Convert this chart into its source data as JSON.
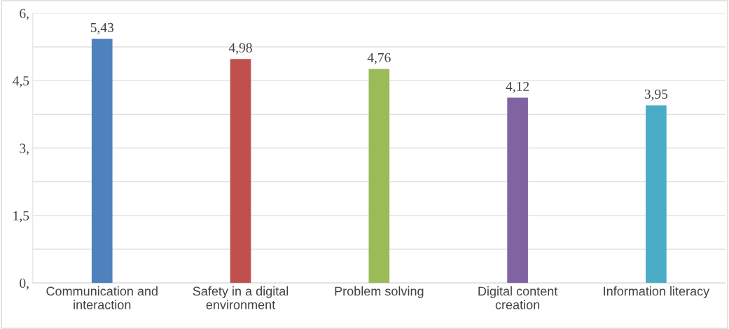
{
  "chart_data": {
    "type": "bar",
    "categories": [
      "Communication and\ninteraction",
      "Safety in a digital\nenvironment",
      "Problem solving",
      "Digital content\ncreation",
      "Information literacy"
    ],
    "values": [
      5.43,
      4.98,
      4.76,
      4.12,
      3.95
    ],
    "colors": [
      "#4f81bd",
      "#c0504d",
      "#9bbb59",
      "#8064a2",
      "#4bacc6"
    ],
    "value_labels": [
      "5,43",
      "4,98",
      "4,76",
      "4,12",
      "3,95"
    ],
    "ylim": [
      0,
      6
    ],
    "yticks": [
      {
        "value": 0,
        "label": "0,"
      },
      {
        "value": 0.75,
        "label": null
      },
      {
        "value": 1.5,
        "label": "1,5"
      },
      {
        "value": 2.25,
        "label": null
      },
      {
        "value": 3,
        "label": "3,"
      },
      {
        "value": 3.75,
        "label": null
      },
      {
        "value": 4.5,
        "label": "4,5"
      },
      {
        "value": 5.25,
        "label": null
      },
      {
        "value": 6,
        "label": "6,"
      }
    ],
    "grid": "y"
  }
}
